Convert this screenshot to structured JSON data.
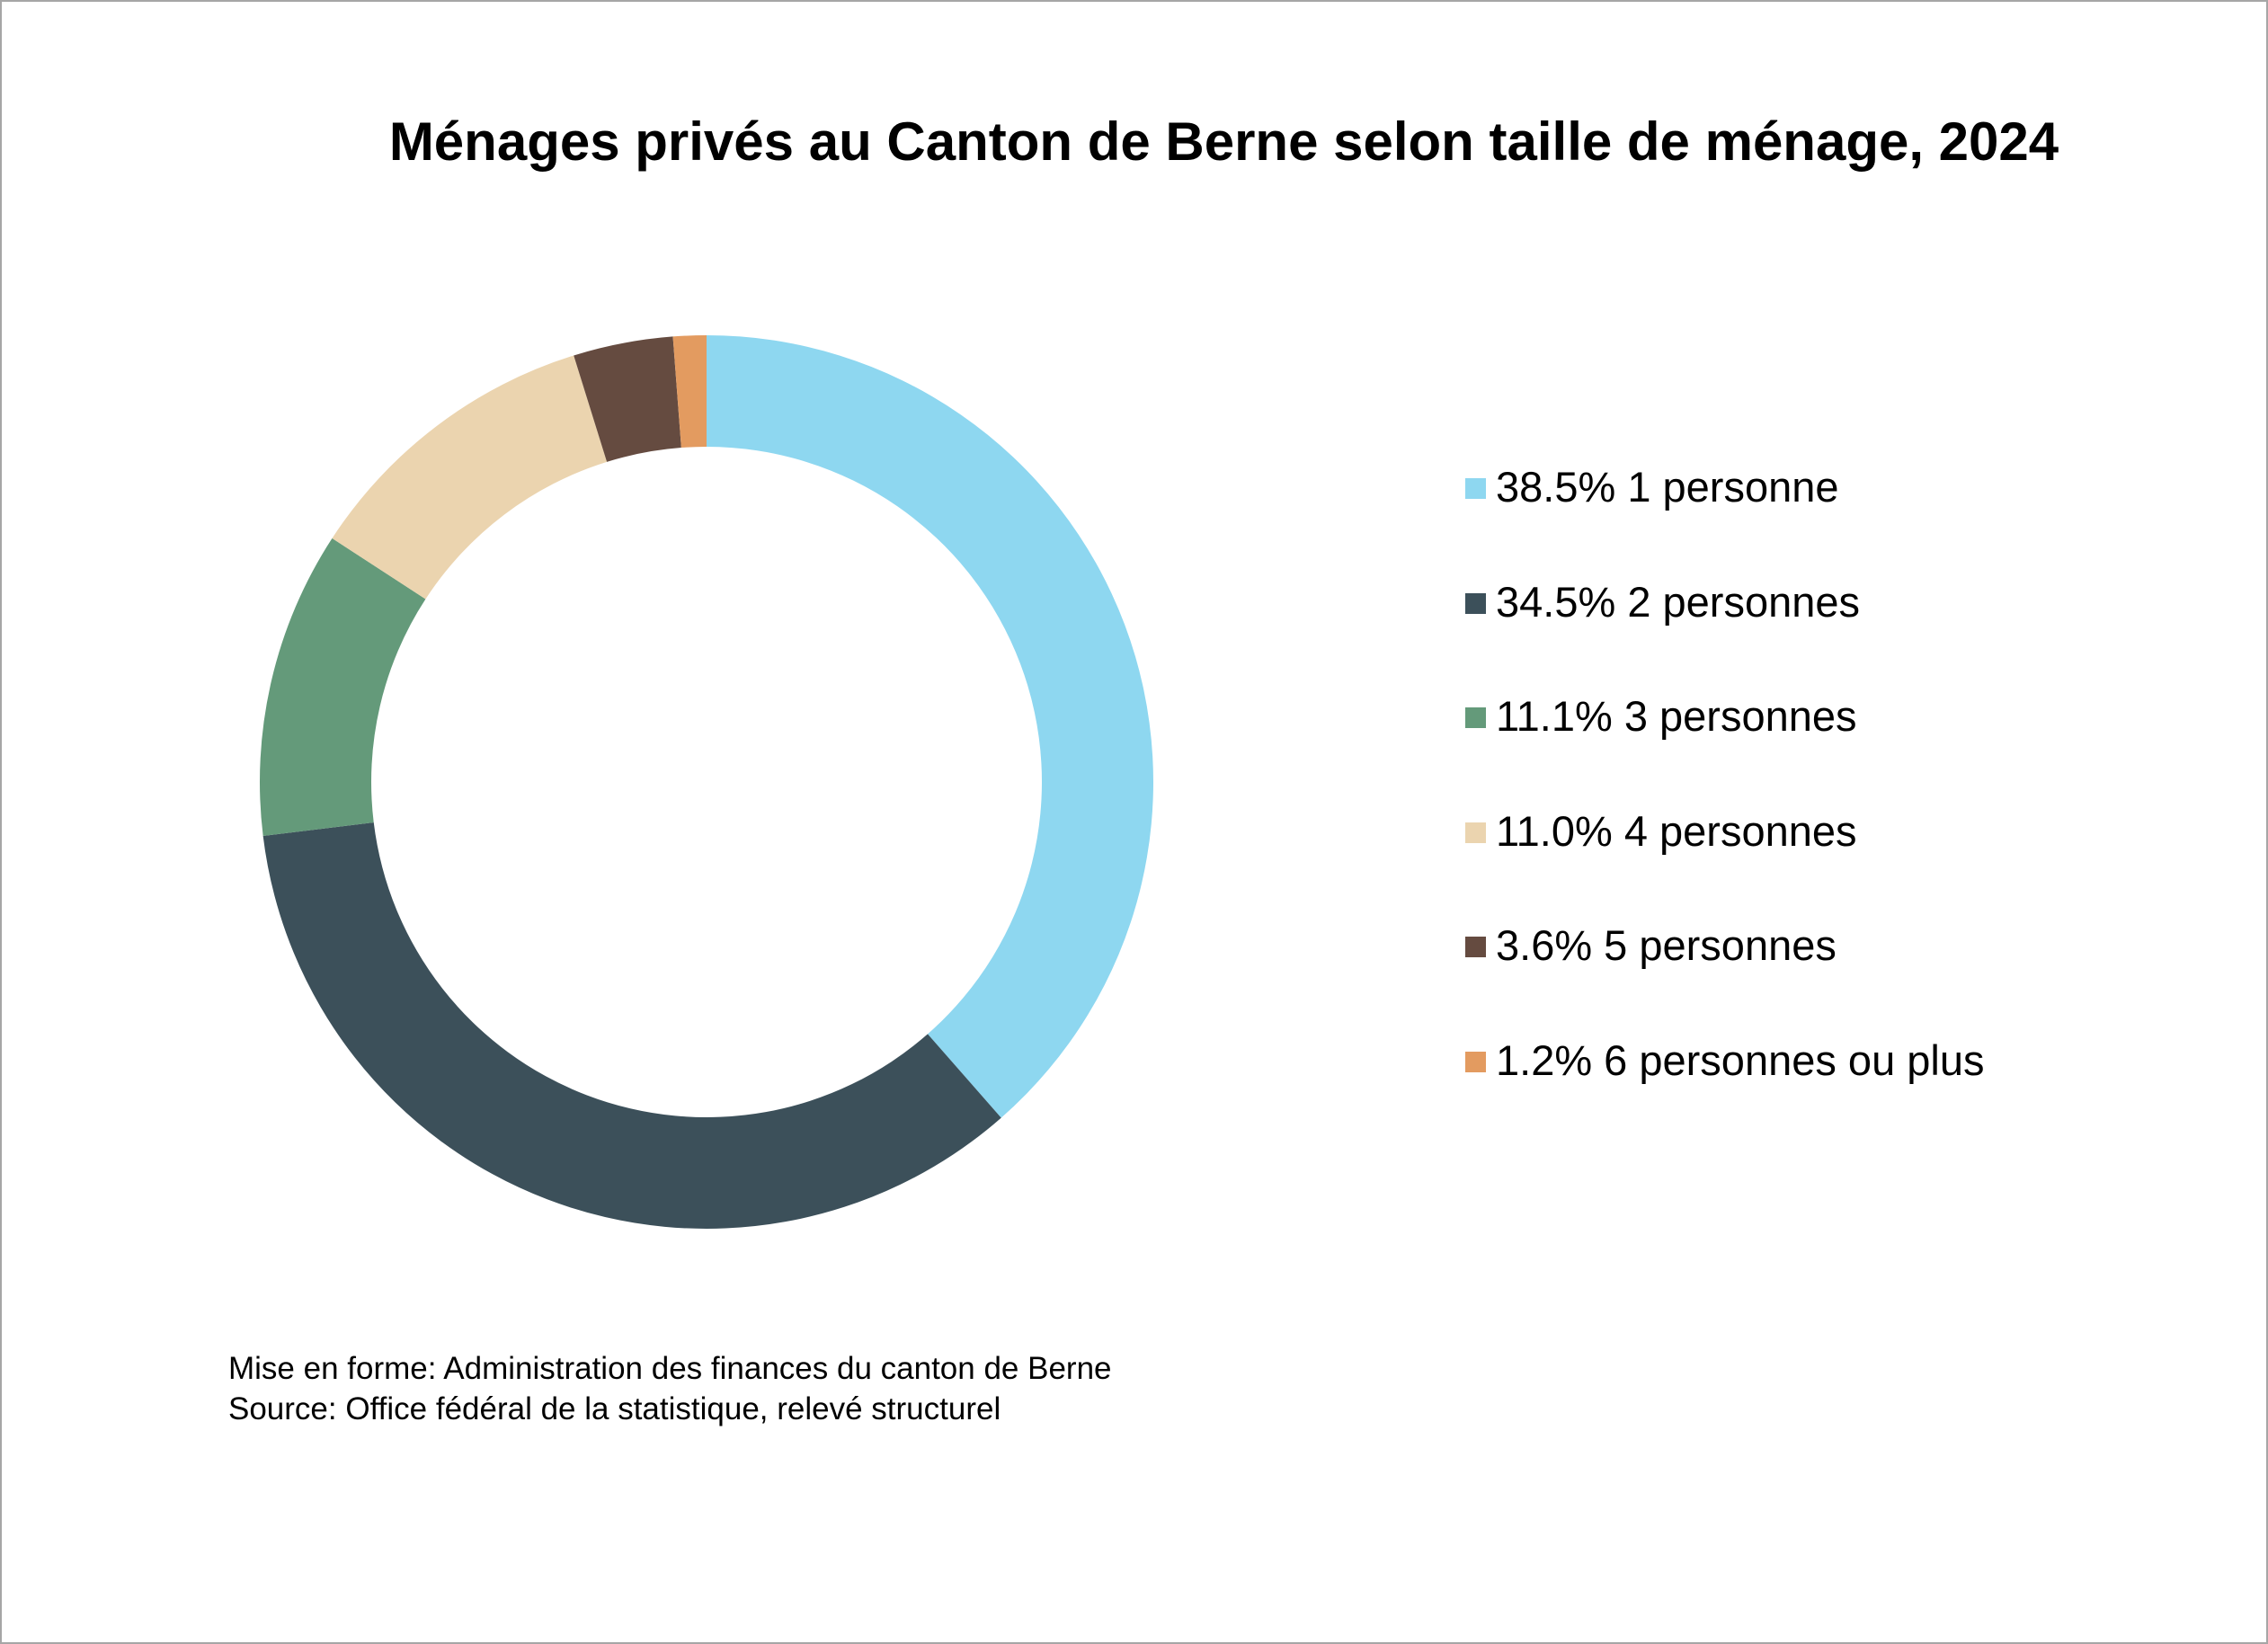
{
  "chart_data": {
    "type": "pie",
    "variant": "donut",
    "title": "Ménages privés au Canton de Berne selon taille de ménage, 2024",
    "categories": [
      "1 personne",
      "2 personnes",
      "3 personnes",
      "4 personnes",
      "5 personnes",
      "6 personnes ou plus"
    ],
    "values": [
      38.5,
      34.5,
      11.1,
      11.0,
      3.6,
      1.2
    ],
    "unit": "%",
    "legend_labels": [
      "38.5% 1 personne",
      "34.5% 2 personnes",
      "11.1% 3 personnes",
      "11.0% 4 personnes",
      "3.6% 5 personnes",
      "1.2% 6 personnes ou plus"
    ],
    "colors": [
      "#8ed7f0",
      "#3c505a",
      "#649a7a",
      "#ebd4af",
      "#654b40",
      "#e39b60"
    ],
    "legend_position": "right",
    "start_angle": "top, clockwise"
  },
  "footer": {
    "line1": "Mise en forme: Administration des finances du canton de Berne",
    "line2": "Source: Office fédéral de la statistique, relevé structurel"
  }
}
